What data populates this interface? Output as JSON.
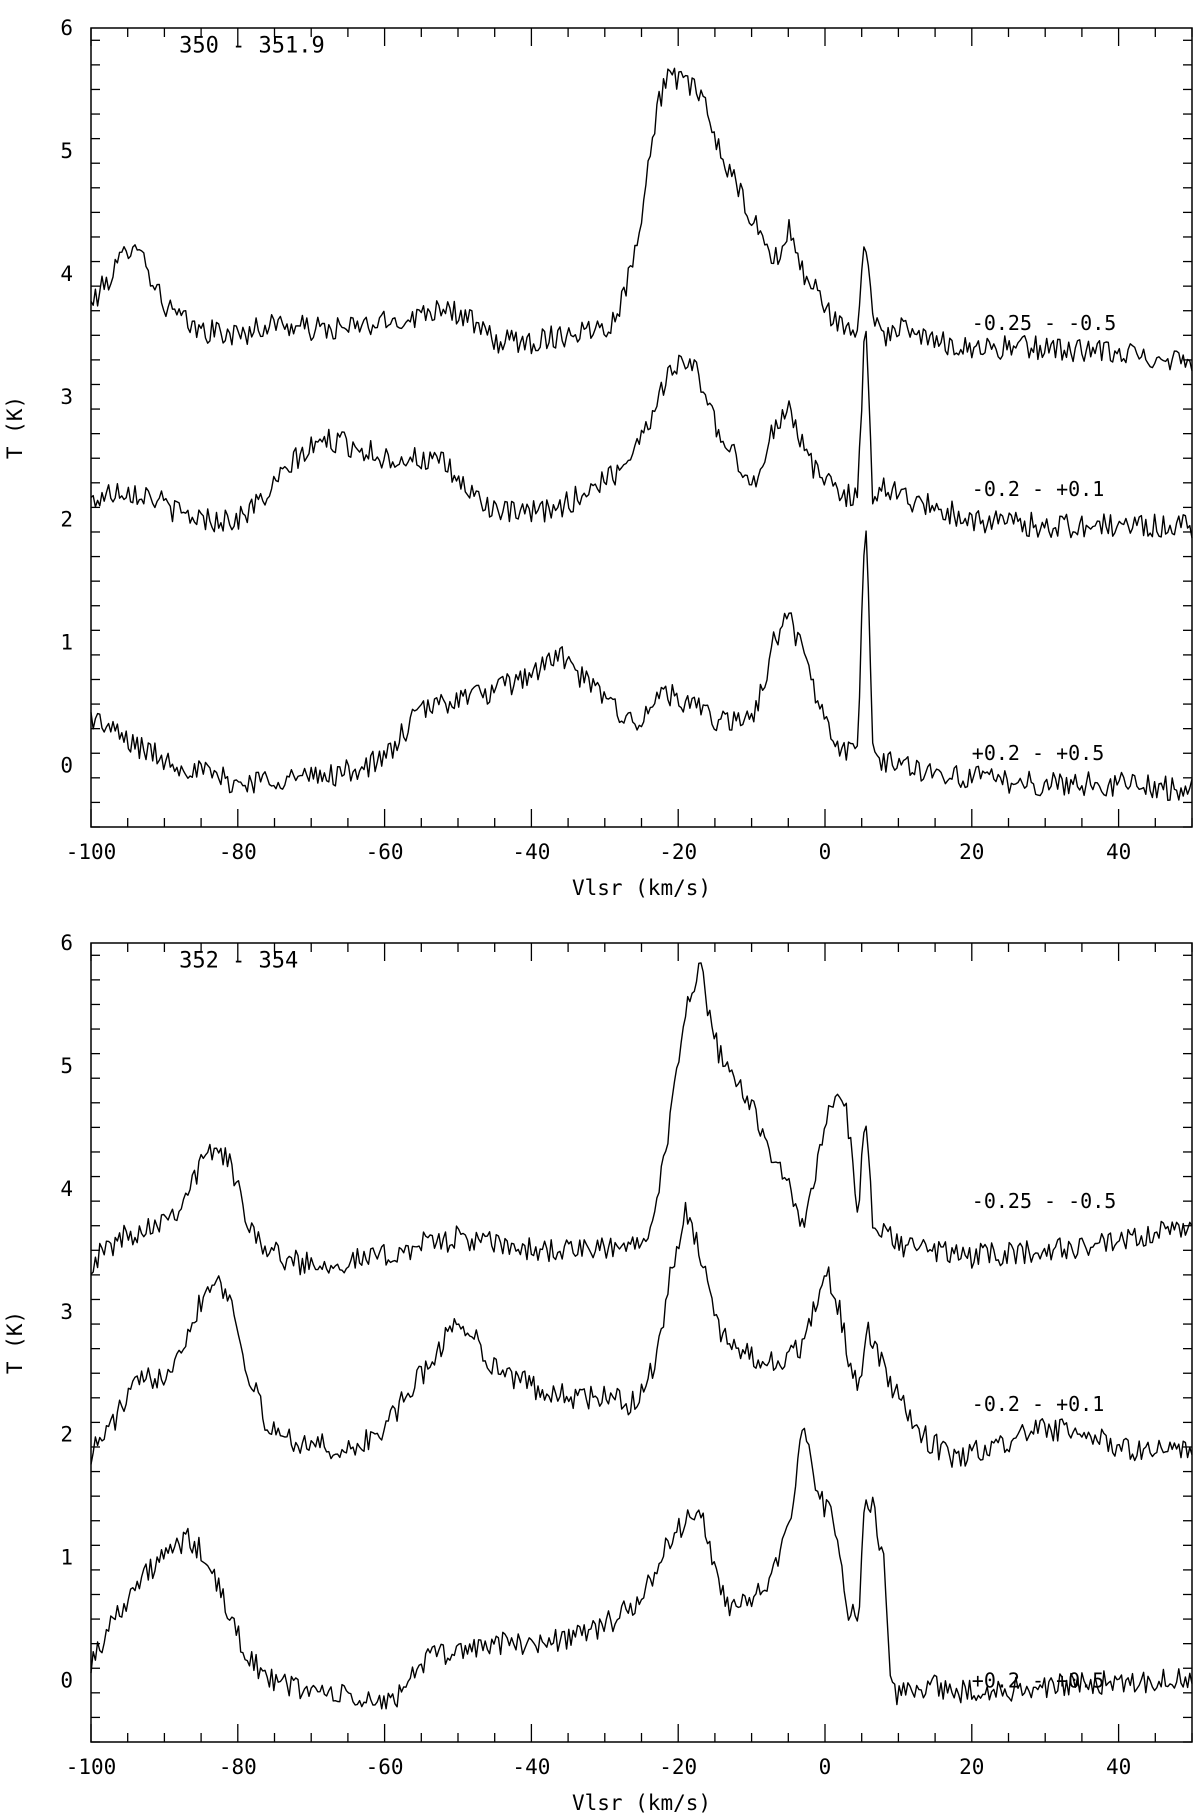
{
  "chart_data": [
    {
      "type": "line",
      "title": "350 - 351.9",
      "xlabel": "Vlsr (km/s)",
      "ylabel": "T (K)",
      "xlim": [
        -100,
        50
      ],
      "ylim": [
        -0.5,
        6
      ],
      "xticks": [
        -100,
        -80,
        -60,
        -40,
        -20,
        0,
        20,
        40
      ],
      "yticks": [
        0,
        1,
        2,
        3,
        4,
        5,
        6
      ],
      "grid": false,
      "legend": "none",
      "series": [
        {
          "name": "-0.25 - -0.5",
          "label_anchor": [
            20,
            3.6
          ],
          "x": [
            -100,
            -96,
            -94,
            -92,
            -90,
            -86,
            -80,
            -75,
            -70,
            -66,
            -60,
            -56,
            -52,
            -48,
            -45,
            -40,
            -36,
            -32,
            -29,
            -27,
            -25,
            -23,
            -21.5,
            -20,
            -18,
            -16,
            -14,
            -12,
            -10,
            -8,
            -6,
            -5,
            -3,
            -1,
            1,
            3,
            4.5,
            5.5,
            6.5,
            8,
            10,
            15,
            20,
            30,
            40,
            50
          ],
          "values": [
            3.75,
            4.1,
            4.3,
            4.0,
            3.75,
            3.55,
            3.5,
            3.6,
            3.55,
            3.55,
            3.6,
            3.65,
            3.75,
            3.6,
            3.45,
            3.45,
            3.5,
            3.55,
            3.6,
            3.9,
            4.5,
            5.3,
            5.65,
            5.55,
            5.55,
            5.3,
            4.95,
            4.7,
            4.45,
            4.2,
            4.1,
            4.4,
            4.0,
            3.85,
            3.65,
            3.5,
            3.6,
            4.3,
            3.7,
            3.5,
            3.55,
            3.45,
            3.4,
            3.4,
            3.35,
            3.3
          ]
        },
        {
          "name": "-0.2 - +0.1",
          "label_anchor": [
            20,
            2.25
          ],
          "x": [
            -100,
            -96,
            -92,
            -88,
            -84,
            -80,
            -76,
            -72,
            -68,
            -64,
            -60,
            -56,
            -52,
            -48,
            -44,
            -40,
            -36,
            -32,
            -28,
            -26,
            -24,
            -22,
            -20,
            -18,
            -16,
            -14,
            -12,
            -10,
            -9,
            -7,
            -5,
            -3,
            -1,
            1,
            3,
            4.5,
            5.5,
            6.5,
            8,
            10,
            15,
            20,
            30,
            40,
            50
          ],
          "values": [
            2.15,
            2.25,
            2.2,
            2.05,
            2.0,
            2.0,
            2.2,
            2.5,
            2.65,
            2.6,
            2.5,
            2.5,
            2.45,
            2.2,
            2.05,
            2.05,
            2.1,
            2.25,
            2.4,
            2.6,
            2.8,
            3.1,
            3.3,
            3.25,
            3.0,
            2.6,
            2.5,
            2.3,
            2.3,
            2.75,
            2.95,
            2.6,
            2.35,
            2.3,
            2.2,
            2.2,
            3.65,
            2.2,
            2.3,
            2.2,
            2.1,
            2.0,
            1.95,
            1.95,
            1.95
          ]
        },
        {
          "name": "+0.2 - +0.5",
          "label_anchor": [
            20,
            0.1
          ],
          "x": [
            -100,
            -95,
            -90,
            -85,
            -80,
            -75,
            -70,
            -65,
            -60,
            -57,
            -55,
            -50,
            -45,
            -40,
            -36,
            -33,
            -30,
            -26,
            -24,
            -22,
            -20,
            -17,
            -14,
            -12,
            -10,
            -8,
            -7,
            -5,
            -3,
            -1,
            1,
            3,
            4.5,
            5.5,
            6.5,
            8,
            10,
            15,
            20,
            30,
            40,
            50
          ],
          "values": [
            0.4,
            0.2,
            0.05,
            -0.05,
            -0.15,
            -0.1,
            -0.1,
            -0.05,
            0.05,
            0.3,
            0.45,
            0.55,
            0.6,
            0.75,
            0.9,
            0.7,
            0.55,
            0.35,
            0.4,
            0.65,
            0.5,
            0.45,
            0.35,
            0.35,
            0.4,
            0.7,
            1.0,
            1.25,
            0.9,
            0.55,
            0.2,
            0.1,
            0.15,
            2.2,
            0.1,
            0.05,
            0.0,
            -0.05,
            -0.1,
            -0.15,
            -0.15,
            -0.2
          ]
        }
      ]
    },
    {
      "type": "line",
      "title": "352 - 354",
      "xlabel": "Vlsr (km/s)",
      "ylabel": "T (K)",
      "xlim": [
        -100,
        50
      ],
      "ylim": [
        -0.5,
        6
      ],
      "xticks": [
        -100,
        -80,
        -60,
        -40,
        -20,
        0,
        20,
        40
      ],
      "yticks": [
        0,
        1,
        2,
        3,
        4,
        5,
        6
      ],
      "grid": false,
      "legend": "none",
      "series": [
        {
          "name": "-0.25 - -0.5",
          "label_anchor": [
            20,
            3.9
          ],
          "x": [
            -100,
            -96,
            -92,
            -88,
            -85,
            -83,
            -81,
            -79,
            -76,
            -72,
            -66,
            -60,
            -55,
            -50,
            -45,
            -40,
            -35,
            -30,
            -26,
            -24,
            -22,
            -20,
            -18.5,
            -17,
            -15,
            -13,
            -10,
            -8,
            -5,
            -3,
            -1,
            1,
            3,
            4.5,
            5.5,
            6.5,
            8,
            10,
            15,
            20,
            30,
            40,
            50
          ],
          "values": [
            3.4,
            3.6,
            3.7,
            3.85,
            4.2,
            4.35,
            4.2,
            3.8,
            3.5,
            3.4,
            3.4,
            3.45,
            3.55,
            3.6,
            3.55,
            3.5,
            3.5,
            3.5,
            3.55,
            3.7,
            4.2,
            5.0,
            5.6,
            5.8,
            5.2,
            4.9,
            4.7,
            4.4,
            4.0,
            3.7,
            4.2,
            4.75,
            4.6,
            3.8,
            4.6,
            3.7,
            3.65,
            3.55,
            3.5,
            3.45,
            3.5,
            3.55,
            3.7
          ]
        },
        {
          "name": "-0.2 - +0.1",
          "label_anchor": [
            20,
            2.25
          ],
          "x": [
            -100,
            -97,
            -94,
            -90,
            -87,
            -85,
            -83,
            -81,
            -79,
            -76,
            -72,
            -68,
            -65,
            -60,
            -56,
            -52,
            -50,
            -48,
            -45,
            -42,
            -38,
            -34,
            -30,
            -26,
            -23,
            -21,
            -19,
            -17,
            -15,
            -13,
            -10,
            -8,
            -5,
            -3,
            -1,
            0.5,
            2,
            3.5,
            4.5,
            6,
            7.5,
            9,
            11,
            14,
            18,
            25,
            30,
            35,
            40,
            50
          ],
          "values": [
            1.85,
            2.1,
            2.4,
            2.5,
            2.8,
            3.1,
            3.3,
            3.1,
            2.6,
            2.05,
            1.95,
            1.9,
            1.85,
            2.05,
            2.4,
            2.75,
            2.95,
            2.8,
            2.55,
            2.45,
            2.35,
            2.3,
            2.3,
            2.25,
            2.6,
            3.3,
            3.8,
            3.5,
            2.9,
            2.75,
            2.65,
            2.6,
            2.6,
            2.75,
            3.1,
            3.3,
            3.0,
            2.55,
            2.35,
            2.85,
            2.6,
            2.4,
            2.2,
            1.95,
            1.8,
            1.95,
            2.05,
            2.0,
            1.9,
            1.85
          ]
        },
        {
          "name": "+0.2 - +0.5",
          "label_anchor": [
            20,
            0.0
          ],
          "x": [
            -100,
            -96,
            -92,
            -89,
            -87,
            -85,
            -83,
            -81,
            -79,
            -76,
            -72,
            -68,
            -64,
            -60,
            -58,
            -55,
            -50,
            -45,
            -40,
            -35,
            -30,
            -26,
            -23,
            -21,
            -19,
            -17,
            -15,
            -13,
            -10,
            -7,
            -5,
            -3,
            -1,
            1,
            2,
            3,
            4.5,
            5.5,
            6.5,
            8,
            9,
            10,
            15,
            20,
            30,
            40,
            50
          ],
          "values": [
            0.15,
            0.6,
            0.9,
            1.05,
            1.15,
            1.05,
            0.8,
            0.5,
            0.25,
            0.0,
            -0.05,
            -0.1,
            -0.15,
            -0.2,
            -0.1,
            0.15,
            0.25,
            0.3,
            0.3,
            0.35,
            0.45,
            0.6,
            0.9,
            1.15,
            1.3,
            1.4,
            0.85,
            0.6,
            0.7,
            0.85,
            1.2,
            2.05,
            1.5,
            1.35,
            1.1,
            0.6,
            0.45,
            1.5,
            1.4,
            0.95,
            -0.1,
            -0.1,
            -0.05,
            -0.1,
            -0.05,
            0.0,
            0.0
          ]
        }
      ]
    }
  ]
}
